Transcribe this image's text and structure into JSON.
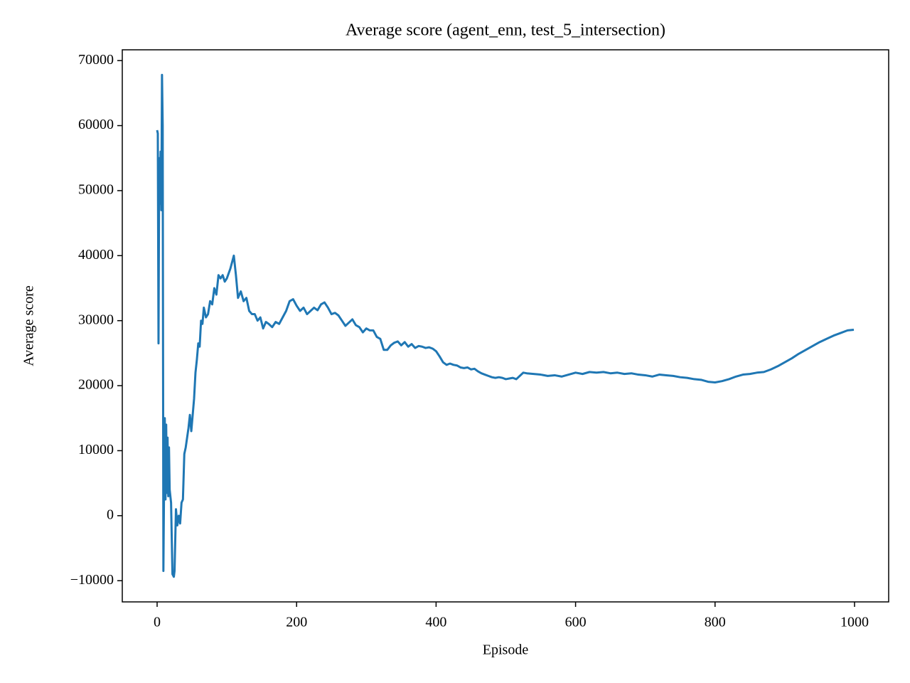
{
  "chart_data": {
    "type": "line",
    "title": "Average score (agent_enn, test_5_intersection)",
    "xlabel": "Episode",
    "ylabel": "Average score",
    "color": "#1f77b4",
    "xlim": [
      -49.95,
      1048.95
    ],
    "ylim": [
      -13260,
      71660
    ],
    "xticks": [
      0,
      200,
      400,
      600,
      800,
      1000
    ],
    "yticks": [
      {
        "value": -10000,
        "label": "−10000"
      },
      0,
      10000,
      20000,
      30000,
      40000,
      50000,
      60000,
      70000
    ],
    "x": [
      0,
      1,
      2,
      3,
      4,
      5,
      6,
      7,
      8,
      9,
      10,
      11,
      12,
      13,
      14,
      15,
      16,
      17,
      18,
      20,
      22,
      24,
      25,
      27,
      29,
      31,
      33,
      35,
      37,
      39,
      41,
      43,
      45,
      47,
      49,
      51,
      53,
      55,
      57,
      59,
      61,
      63,
      65,
      67,
      70,
      73,
      76,
      79,
      82,
      85,
      88,
      91,
      94,
      97,
      100,
      105,
      110,
      113,
      116,
      120,
      124,
      128,
      132,
      136,
      140,
      144,
      148,
      152,
      156,
      160,
      165,
      170,
      175,
      180,
      185,
      190,
      195,
      200,
      205,
      210,
      215,
      220,
      225,
      230,
      235,
      240,
      245,
      250,
      255,
      260,
      265,
      270,
      275,
      280,
      285,
      290,
      295,
      300,
      305,
      310,
      315,
      320,
      325,
      330,
      335,
      340,
      345,
      350,
      355,
      360,
      365,
      370,
      375,
      380,
      385,
      390,
      395,
      400,
      405,
      410,
      415,
      420,
      425,
      430,
      435,
      440,
      445,
      450,
      455,
      460,
      465,
      470,
      475,
      480,
      485,
      490,
      495,
      500,
      505,
      510,
      515,
      520,
      525,
      530,
      540,
      550,
      560,
      570,
      580,
      590,
      600,
      610,
      620,
      630,
      640,
      650,
      660,
      670,
      680,
      690,
      700,
      710,
      720,
      730,
      740,
      750,
      760,
      770,
      780,
      790,
      800,
      810,
      820,
      830,
      840,
      850,
      860,
      870,
      880,
      890,
      900,
      910,
      920,
      930,
      940,
      950,
      960,
      970,
      980,
      990,
      999
    ],
    "values": [
      59300,
      58800,
      26500,
      55000,
      48000,
      56000,
      47000,
      67800,
      60000,
      -8500,
      5000,
      15000,
      2500,
      14000,
      3500,
      12000,
      3000,
      10500,
      4000,
      2000,
      -9000,
      -9400,
      -8500,
      1000,
      -1500,
      0,
      -1200,
      2000,
      2500,
      9500,
      10500,
      12000,
      13500,
      15500,
      13000,
      15500,
      18000,
      22000,
      24000,
      26500,
      26000,
      30000,
      29500,
      32000,
      30500,
      31000,
      33000,
      32500,
      35000,
      34000,
      37000,
      36500,
      37000,
      36000,
      36500,
      38000,
      40000,
      37000,
      33500,
      34500,
      33000,
      33500,
      31500,
      31000,
      31000,
      30000,
      30500,
      28800,
      29800,
      29500,
      29000,
      29800,
      29500,
      30500,
      31500,
      33000,
      33300,
      32300,
      31500,
      32000,
      31000,
      31500,
      32000,
      31600,
      32500,
      32800,
      32000,
      31000,
      31200,
      30800,
      30000,
      29200,
      29700,
      30200,
      29300,
      29000,
      28200,
      28800,
      28500,
      28500,
      27500,
      27200,
      25500,
      25500,
      26200,
      26600,
      26800,
      26200,
      26700,
      26000,
      26400,
      25800,
      26100,
      26000,
      25800,
      25900,
      25700,
      25300,
      24500,
      23600,
      23200,
      23400,
      23200,
      23100,
      22800,
      22700,
      22800,
      22500,
      22600,
      22200,
      21900,
      21700,
      21500,
      21300,
      21200,
      21300,
      21200,
      21000,
      21100,
      21200,
      21000,
      21500,
      22000,
      21900,
      21800,
      21700,
      21500,
      21600,
      21400,
      21700,
      22000,
      21800,
      22100,
      22000,
      22100,
      21900,
      22000,
      21800,
      21900,
      21700,
      21600,
      21400,
      21700,
      21600,
      21500,
      21300,
      21200,
      21000,
      20900,
      20600,
      20500,
      20700,
      21000,
      21400,
      21700,
      21800,
      22000,
      22100,
      22500,
      23000,
      23600,
      24200,
      24900,
      25500,
      26100,
      26700,
      27200,
      27700,
      28100,
      28500,
      28600
    ]
  }
}
